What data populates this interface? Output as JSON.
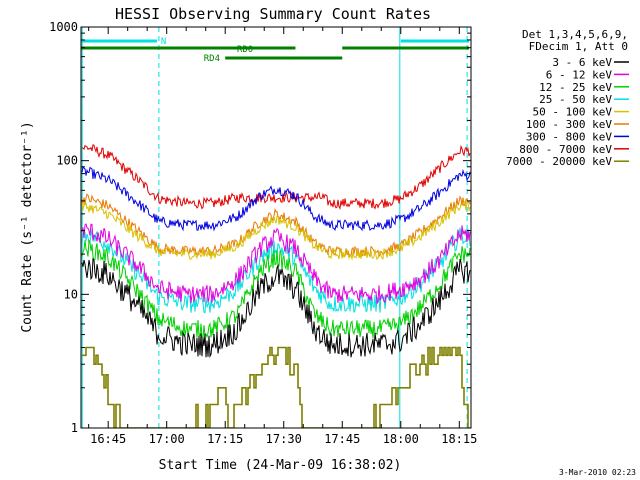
{
  "chart_data": {
    "type": "line",
    "title": "HESSI Observing Summary Count Rates",
    "xlabel": "Start Time (24-Mar-09 16:38:02)",
    "ylabel": "Count Rate (s⁻¹ detector⁻¹)",
    "y_scale": "log",
    "ylim": [
      1,
      1000
    ],
    "xlim": [
      "16:38:02",
      "18:18:00"
    ],
    "y_ticks": [
      "1",
      "10",
      "100",
      "1000"
    ],
    "x_ticks": [
      "16:45",
      "17:00",
      "17:15",
      "17:30",
      "17:45",
      "18:00",
      "18:15"
    ],
    "legend": {
      "placement": "right",
      "header": [
        "Det 1,3,4,5,6,9,",
        "FDecim 1, Att 0"
      ],
      "entries": [
        {
          "label": "3 - 6 keV",
          "color": "#000000"
        },
        {
          "label": "6 - 12 keV",
          "color": "#e000e0"
        },
        {
          "label": "12 - 25 keV",
          "color": "#00d000"
        },
        {
          "label": "25 - 50 keV",
          "color": "#00e0e0"
        },
        {
          "label": "50 - 100 keV",
          "color": "#d8c000"
        },
        {
          "label": "100 - 300 keV",
          "color": "#e87800"
        },
        {
          "label": "300 - 800 keV",
          "color": "#0000e0"
        },
        {
          "label": "800 - 7000 keV",
          "color": "#e00000"
        },
        {
          "label": "7000 - 20000 keV",
          "color": "#808000"
        }
      ]
    },
    "series": [
      {
        "name": "3 - 6 keV",
        "color": "#000000",
        "x": [
          "16:40",
          "16:45",
          "16:52",
          "16:58",
          "17:05",
          "17:12",
          "17:18",
          "17:24",
          "17:28",
          "17:33",
          "17:38",
          "17:42",
          "17:48",
          "17:55",
          "18:00",
          "18:05",
          "18:10",
          "18:15"
        ],
        "values": [
          16,
          14,
          8.5,
          5,
          4.2,
          4.2,
          5.5,
          11,
          14,
          11,
          5.5,
          4.2,
          4.2,
          4.2,
          4.5,
          6,
          9,
          15
        ]
      },
      {
        "name": "6 - 12 keV",
        "color": "#e000e0",
        "x": [
          "16:40",
          "16:45",
          "16:52",
          "16:58",
          "17:05",
          "17:12",
          "17:18",
          "17:24",
          "17:28",
          "17:33",
          "17:38",
          "17:42",
          "17:48",
          "17:55",
          "18:00",
          "18:05",
          "18:10",
          "18:15"
        ],
        "values": [
          30,
          26,
          17,
          11,
          10,
          10,
          13,
          22,
          27,
          22,
          13,
          10,
          10,
          10,
          11,
          13,
          18,
          28
        ]
      },
      {
        "name": "12 - 25 keV",
        "color": "#00d000",
        "x": [
          "16:40",
          "16:45",
          "16:52",
          "16:58",
          "17:05",
          "17:12",
          "17:18",
          "17:24",
          "17:28",
          "17:33",
          "17:38",
          "17:42",
          "17:48",
          "17:55",
          "18:00",
          "18:05",
          "18:10",
          "18:15"
        ],
        "values": [
          22,
          19,
          11,
          6.5,
          5.5,
          5.5,
          7,
          15,
          19,
          15,
          7,
          5.5,
          5.5,
          5.5,
          6,
          8,
          12,
          20
        ]
      },
      {
        "name": "25 - 50 keV",
        "color": "#00e0e0",
        "x": [
          "16:40",
          "16:45",
          "16:52",
          "16:58",
          "17:05",
          "17:12",
          "17:18",
          "17:24",
          "17:28",
          "17:33",
          "17:38",
          "17:42",
          "17:48",
          "17:55",
          "18:00",
          "18:05",
          "18:10",
          "18:15"
        ],
        "values": [
          28,
          24,
          15,
          9.5,
          8.5,
          8.5,
          11,
          19,
          23,
          19,
          11,
          8.5,
          8.5,
          8.5,
          9.5,
          12,
          17,
          27
        ]
      },
      {
        "name": "50 - 100 keV",
        "color": "#d8c000",
        "x": [
          "16:40",
          "16:45",
          "16:52",
          "16:58",
          "17:05",
          "17:12",
          "17:18",
          "17:24",
          "17:28",
          "17:33",
          "17:38",
          "17:42",
          "17:48",
          "17:55",
          "18:00",
          "18:05",
          "18:10",
          "18:15"
        ],
        "values": [
          45,
          40,
          28,
          21,
          20,
          20,
          23,
          32,
          37,
          32,
          23,
          20,
          20,
          20,
          22,
          27,
          35,
          46
        ]
      },
      {
        "name": "100 - 300 keV",
        "color": "#e87800",
        "x": [
          "16:40",
          "16:45",
          "16:52",
          "16:58",
          "17:05",
          "17:12",
          "17:18",
          "17:24",
          "17:28",
          "17:33",
          "17:38",
          "17:42",
          "17:48",
          "17:55",
          "18:00",
          "18:05",
          "18:10",
          "18:15"
        ],
        "values": [
          52,
          46,
          31,
          22,
          21,
          21,
          24,
          35,
          40,
          35,
          24,
          21,
          21,
          21,
          23,
          29,
          38,
          50
        ]
      },
      {
        "name": "300 - 800 keV",
        "color": "#0000e0",
        "x": [
          "16:40",
          "16:45",
          "16:52",
          "16:58",
          "17:05",
          "17:12",
          "17:18",
          "17:24",
          "17:28",
          "17:33",
          "17:38",
          "17:42",
          "17:48",
          "17:55",
          "18:00",
          "18:05",
          "18:10",
          "18:15"
        ],
        "values": [
          82,
          72,
          50,
          35,
          33,
          33,
          38,
          55,
          62,
          55,
          38,
          33,
          33,
          33,
          36,
          44,
          58,
          78
        ]
      },
      {
        "name": "800 - 7000 keV",
        "color": "#e00000",
        "x": [
          "16:40",
          "16:45",
          "16:52",
          "16:58",
          "17:05",
          "17:12",
          "17:18",
          "17:33",
          "17:40",
          "17:42",
          "17:48",
          "17:55",
          "18:00",
          "18:05",
          "18:10",
          "18:15"
        ],
        "values": [
          125,
          110,
          75,
          52,
          48,
          48,
          53,
          53,
          53,
          48,
          48,
          48,
          52,
          65,
          88,
          118
        ]
      },
      {
        "name": "7000 - 20000 keV",
        "color": "#808000",
        "x": [
          "16:38",
          "16:40",
          "16:42",
          "16:44",
          "16:46",
          "16:48",
          "17:06",
          "17:10",
          "17:14",
          "17:16",
          "17:18",
          "17:22",
          "17:26",
          "17:30",
          "17:33",
          "17:35",
          "17:52",
          "17:55",
          "18:00",
          "18:05",
          "18:08",
          "18:12",
          "18:15",
          "18:17"
        ],
        "values": [
          3.4,
          4,
          3,
          2.2,
          1.5,
          1,
          1,
          1.3,
          2,
          1,
          1.6,
          2.2,
          3.2,
          4,
          2.7,
          1,
          1,
          1.3,
          2.3,
          3,
          3.4,
          4,
          3.5,
          1
        ]
      }
    ],
    "state_bars": [
      {
        "label": "N",
        "color": "#00e0e0",
        "segments": [
          [
            "16:38:02",
            "16:57:30"
          ],
          [
            "18:00:00",
            "18:17:30"
          ]
        ]
      },
      {
        "label": "RD0",
        "color": "#008000",
        "segments": [
          [
            "16:38:02",
            "17:33:00"
          ],
          [
            "17:45:00",
            "18:17:30"
          ]
        ]
      },
      {
        "label": "RD4",
        "color": "#008000",
        "segments": [
          [
            "17:15:00",
            "17:45:00"
          ]
        ]
      }
    ],
    "vertical_lines": [
      {
        "time": "16:38:20",
        "style": "solid"
      },
      {
        "time": "16:58:00",
        "style": "dashed"
      },
      {
        "time": "17:59:45",
        "style": "solid"
      },
      {
        "time": "18:17:00",
        "style": "dashed"
      }
    ]
  },
  "footer": {
    "timestamp": "3-Mar-2010 02:23"
  }
}
